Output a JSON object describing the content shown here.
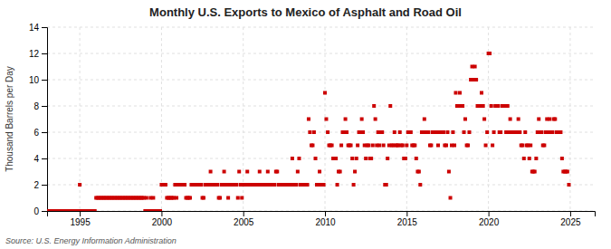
{
  "chart_data": {
    "type": "scatter",
    "title": "Monthly U.S. Exports to Mexico of Asphalt and Road Oil",
    "ylabel": "Thousand Barrels per Day",
    "annotations": [
      "Source: U.S. Energy Information Administration"
    ],
    "color": "#cc0000",
    "marker": "square",
    "grid": true,
    "xlim": [
      1993.0,
      2026.5
    ],
    "xticks": [
      1995,
      2000,
      2005,
      2010,
      2015,
      2020,
      2025
    ],
    "ylim": [
      0,
      14
    ],
    "yticks": [
      0,
      2,
      4,
      6,
      8,
      10,
      12,
      14
    ],
    "x": [
      1993.0,
      1993.08,
      1993.17,
      1993.25,
      1993.33,
      1993.42,
      1993.5,
      1993.58,
      1993.67,
      1993.75,
      1993.83,
      1993.92,
      1994.0,
      1994.08,
      1994.17,
      1994.25,
      1994.33,
      1994.42,
      1994.5,
      1994.58,
      1994.67,
      1994.75,
      1994.83,
      1994.92,
      1995.0,
      1995.08,
      1995.17,
      1995.25,
      1995.33,
      1995.42,
      1995.5,
      1995.58,
      1995.67,
      1995.75,
      1995.83,
      1995.92,
      1996.0,
      1996.08,
      1996.17,
      1996.25,
      1996.33,
      1996.42,
      1996.5,
      1996.58,
      1996.67,
      1996.75,
      1996.83,
      1996.92,
      1997.0,
      1997.08,
      1997.17,
      1997.25,
      1997.33,
      1997.42,
      1997.5,
      1997.58,
      1997.67,
      1997.75,
      1997.83,
      1997.92,
      1998.0,
      1998.08,
      1998.17,
      1998.25,
      1998.33,
      1998.42,
      1998.5,
      1998.58,
      1998.67,
      1998.75,
      1998.83,
      1998.92,
      1999.0,
      1999.08,
      1999.17,
      1999.25,
      1999.33,
      1999.42,
      1999.5,
      1999.58,
      1999.67,
      1999.75,
      1999.83,
      1999.92,
      2000.0,
      2000.08,
      2000.17,
      2000.25,
      2000.33,
      2000.42,
      2000.5,
      2000.58,
      2000.67,
      2000.75,
      2000.83,
      2000.92,
      2001.0,
      2001.08,
      2001.17,
      2001.25,
      2001.33,
      2001.42,
      2001.5,
      2001.58,
      2001.67,
      2001.75,
      2001.83,
      2001.92,
      2002.0,
      2002.08,
      2002.17,
      2002.25,
      2002.33,
      2002.42,
      2002.5,
      2002.58,
      2002.67,
      2002.75,
      2002.83,
      2002.92,
      2003.0,
      2003.08,
      2003.17,
      2003.25,
      2003.33,
      2003.42,
      2003.5,
      2003.58,
      2003.67,
      2003.75,
      2003.83,
      2003.92,
      2004.0,
      2004.08,
      2004.17,
      2004.25,
      2004.33,
      2004.42,
      2004.5,
      2004.58,
      2004.67,
      2004.75,
      2004.83,
      2004.92,
      2005.0,
      2005.08,
      2005.17,
      2005.25,
      2005.33,
      2005.42,
      2005.5,
      2005.58,
      2005.67,
      2005.75,
      2005.83,
      2005.92,
      2006.0,
      2006.08,
      2006.17,
      2006.25,
      2006.33,
      2006.42,
      2006.5,
      2006.58,
      2006.67,
      2006.75,
      2006.83,
      2006.92,
      2007.0,
      2007.08,
      2007.17,
      2007.25,
      2007.33,
      2007.42,
      2007.5,
      2007.58,
      2007.67,
      2007.75,
      2007.83,
      2007.92,
      2008.0,
      2008.08,
      2008.17,
      2008.25,
      2008.33,
      2008.42,
      2008.5,
      2008.58,
      2008.67,
      2008.75,
      2008.83,
      2008.92,
      2009.0,
      2009.08,
      2009.17,
      2009.25,
      2009.33,
      2009.42,
      2009.5,
      2009.58,
      2009.67,
      2009.75,
      2009.83,
      2009.92,
      2010.0,
      2010.08,
      2010.17,
      2010.25,
      2010.33,
      2010.42,
      2010.5,
      2010.58,
      2010.67,
      2010.75,
      2010.83,
      2010.92,
      2011.0,
      2011.08,
      2011.17,
      2011.25,
      2011.33,
      2011.42,
      2011.5,
      2011.58,
      2011.67,
      2011.75,
      2011.83,
      2011.92,
      2012.0,
      2012.08,
      2012.17,
      2012.25,
      2012.33,
      2012.42,
      2012.5,
      2012.58,
      2012.67,
      2012.75,
      2012.83,
      2012.92,
      2013.0,
      2013.08,
      2013.17,
      2013.25,
      2013.33,
      2013.42,
      2013.5,
      2013.58,
      2013.67,
      2013.75,
      2013.83,
      2013.92,
      2014.0,
      2014.08,
      2014.17,
      2014.25,
      2014.33,
      2014.42,
      2014.5,
      2014.58,
      2014.67,
      2014.75,
      2014.83,
      2014.92,
      2015.0,
      2015.08,
      2015.17,
      2015.25,
      2015.33,
      2015.42,
      2015.5,
      2015.58,
      2015.67,
      2015.75,
      2015.83,
      2015.92,
      2016.0,
      2016.08,
      2016.17,
      2016.25,
      2016.33,
      2016.42,
      2016.5,
      2016.58,
      2016.67,
      2016.75,
      2016.83,
      2016.92,
      2017.0,
      2017.08,
      2017.17,
      2017.25,
      2017.33,
      2017.42,
      2017.5,
      2017.58,
      2017.67,
      2017.75,
      2017.83,
      2017.92,
      2018.0,
      2018.08,
      2018.17,
      2018.25,
      2018.33,
      2018.42,
      2018.5,
      2018.58,
      2018.67,
      2018.75,
      2018.83,
      2018.92,
      2019.0,
      2019.08,
      2019.17,
      2019.25,
      2019.33,
      2019.42,
      2019.5,
      2019.58,
      2019.67,
      2019.75,
      2019.83,
      2019.92,
      2020.0,
      2020.08,
      2020.17,
      2020.25,
      2020.33,
      2020.42,
      2020.5,
      2020.58,
      2020.67,
      2020.75,
      2020.83,
      2020.92,
      2021.0,
      2021.08,
      2021.17,
      2021.25,
      2021.33,
      2021.42,
      2021.5,
      2021.58,
      2021.67,
      2021.75,
      2021.83,
      2021.92,
      2022.0,
      2022.08,
      2022.17,
      2022.25,
      2022.33,
      2022.42,
      2022.5,
      2022.58,
      2022.67,
      2022.75,
      2022.83,
      2022.92,
      2023.0,
      2023.08,
      2023.17,
      2023.25,
      2023.33,
      2023.42,
      2023.5,
      2023.58,
      2023.67,
      2023.75,
      2023.83,
      2023.92,
      2024.0,
      2024.08,
      2024.17,
      2024.25,
      2024.33,
      2024.42,
      2024.5,
      2024.58,
      2024.67,
      2024.75,
      2024.83,
      2024.92
    ],
    "values": [
      0.0,
      0.0,
      0.0,
      0.0,
      0.0,
      0.0,
      0.0,
      0.0,
      0.0,
      0.0,
      0.0,
      0.0,
      0.0,
      0.0,
      0.0,
      0.0,
      0.0,
      0.0,
      0.0,
      0.0,
      0.0,
      0.0,
      0.0,
      0.0,
      2.0,
      0.0,
      0.0,
      0.0,
      0.0,
      0.0,
      0.0,
      0.0,
      0.0,
      0.0,
      0.0,
      0.0,
      1.0,
      1.0,
      1.0,
      1.0,
      1.0,
      1.0,
      1.0,
      1.0,
      1.0,
      1.0,
      1.0,
      1.0,
      1.0,
      1.0,
      1.0,
      1.0,
      1.0,
      1.0,
      1.0,
      1.0,
      1.0,
      1.0,
      1.0,
      1.0,
      1.0,
      1.0,
      1.0,
      1.0,
      1.0,
      1.0,
      1.0,
      1.0,
      1.0,
      1.0,
      1.0,
      1.0,
      0.0,
      1.0,
      0.0,
      0.0,
      1.0,
      0.0,
      1.0,
      0.0,
      0.0,
      0.0,
      0.0,
      0.0,
      2.0,
      2.0,
      2.0,
      2.0,
      1.0,
      1.0,
      1.0,
      1.0,
      1.0,
      1.0,
      2.0,
      1.0,
      2.0,
      2.0,
      2.0,
      2.0,
      2.0,
      2.0,
      1.0,
      1.0,
      1.0,
      1.0,
      2.0,
      2.0,
      2.0,
      2.0,
      2.0,
      2.0,
      2.0,
      2.0,
      1.0,
      1.0,
      2.0,
      2.0,
      2.0,
      2.0,
      3.0,
      2.0,
      2.0,
      2.0,
      2.0,
      2.0,
      1.0,
      1.0,
      2.0,
      2.0,
      3.0,
      2.0,
      2.0,
      1.0,
      2.0,
      2.0,
      2.0,
      2.0,
      2.0,
      2.0,
      1.0,
      3.0,
      2.0,
      1.0,
      2.0,
      2.0,
      2.0,
      3.0,
      2.0,
      2.0,
      2.0,
      2.0,
      2.0,
      2.0,
      2.0,
      2.0,
      3.0,
      2.0,
      2.0,
      2.0,
      2.0,
      2.0,
      3.0,
      2.0,
      2.0,
      2.0,
      2.0,
      2.0,
      3.0,
      3.0,
      2.0,
      2.0,
      2.0,
      2.0,
      2.0,
      2.0,
      2.0,
      2.0,
      2.0,
      2.0,
      4.0,
      2.0,
      2.0,
      2.0,
      3.0,
      4.0,
      2.0,
      2.0,
      2.0,
      2.0,
      2.0,
      2.0,
      7.0,
      6.0,
      5.0,
      5.0,
      6.0,
      4.0,
      2.0,
      2.0,
      3.0,
      2.0,
      2.0,
      2.0,
      9.0,
      7.0,
      6.0,
      5.0,
      5.0,
      5.0,
      4.0,
      4.0,
      4.0,
      2.0,
      3.0,
      3.0,
      5.0,
      6.0,
      6.0,
      7.0,
      6.0,
      5.0,
      5.0,
      5.0,
      4.0,
      2.0,
      3.0,
      4.0,
      5.0,
      6.0,
      6.0,
      7.0,
      6.0,
      5.0,
      4.0,
      5.0,
      5.0,
      4.0,
      4.0,
      5.0,
      8.0,
      7.0,
      5.0,
      6.0,
      5.0,
      6.0,
      6.0,
      5.0,
      2.0,
      2.0,
      4.0,
      5.0,
      8.0,
      5.0,
      5.0,
      6.0,
      5.0,
      5.0,
      5.0,
      6.0,
      5.0,
      5.0,
      4.0,
      4.0,
      5.0,
      6.0,
      6.0,
      6.0,
      5.0,
      5.0,
      5.0,
      4.0,
      3.0,
      3.0,
      2.0,
      6.0,
      6.0,
      7.0,
      6.0,
      6.0,
      6.0,
      5.0,
      5.0,
      6.0,
      6.0,
      6.0,
      6.0,
      5.0,
      6.0,
      6.0,
      6.0,
      6.0,
      5.0,
      5.0,
      6.0,
      3.0,
      1.0,
      5.0,
      6.0,
      5.0,
      9.0,
      8.0,
      8.0,
      9.0,
      8.0,
      8.0,
      6.0,
      7.0,
      5.0,
      5.0,
      6.0,
      10.0,
      11.0,
      10.0,
      11.0,
      10.0,
      8.0,
      8.0,
      8.0,
      9.0,
      8.0,
      7.0,
      5.0,
      6.0,
      12.0,
      12.0,
      8.0,
      5.0,
      6.0,
      8.0,
      8.0,
      8.0,
      6.0,
      6.0,
      8.0,
      8.0,
      8.0,
      6.0,
      8.0,
      6.0,
      7.0,
      6.0,
      6.0,
      6.0,
      6.0,
      6.0,
      7.0,
      6.0,
      5.0,
      5.0,
      4.0,
      6.0,
      5.0,
      5.0,
      4.0,
      5.0,
      3.0,
      3.0,
      3.0,
      4.0,
      6.0,
      7.0,
      6.0,
      6.0,
      5.0,
      5.0,
      6.0,
      7.0,
      6.0,
      7.0,
      6.0,
      6.0,
      7.0,
      7.0,
      6.0,
      6.0,
      6.0,
      6.0,
      4.0,
      3.0,
      3.0,
      3.0,
      3.0,
      2.0
    ]
  }
}
